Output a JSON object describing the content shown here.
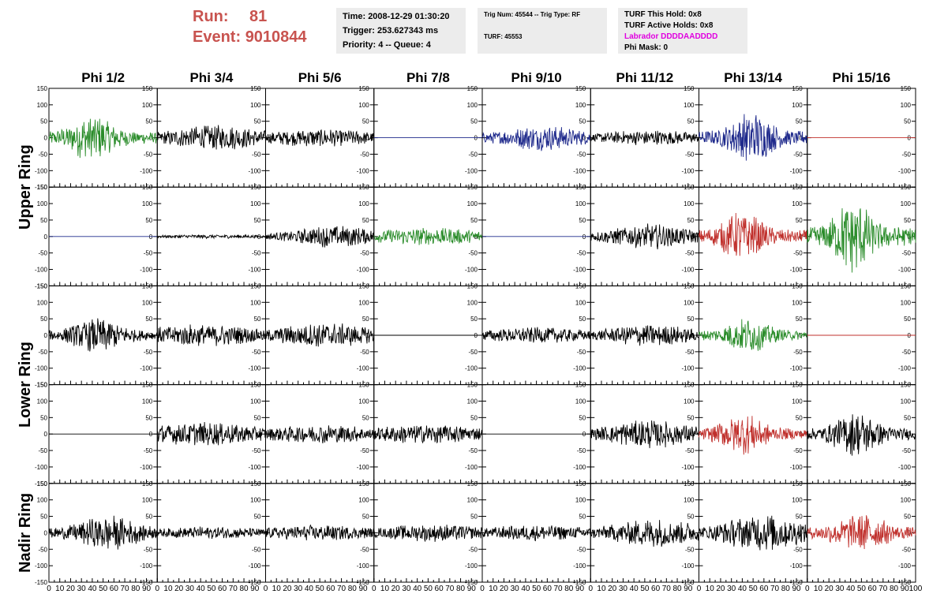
{
  "header": {
    "run_label": "Run:",
    "run_value": "81",
    "event_label": "Event:",
    "event_value": "9010844",
    "time": "Time: 2008-12-29 01:30:20",
    "trigger": "Trigger: 253.627343 ms",
    "priority": "Priority: 4 -- Queue: 4",
    "trig_num": "Trig Num: 45544 -- Trig Type: RF",
    "turf": "TURF: 45553",
    "turf_this_hold": "TURF This Hold: 0x8",
    "turf_active_holds": "TURF Active Holds: 0x8",
    "labrador": "Labrador DDDDAADDDD",
    "phi_mask": "Phi Mask: 0"
  },
  "colors": {
    "black": "#000000",
    "green": "#2a8c2a",
    "blue": "#1f2a8c",
    "red": "#c0302c",
    "header_red": "#c8534f",
    "labrador": "#e000e0"
  },
  "chart_data": {
    "type": "line",
    "columns": [
      "Phi 1/2",
      "Phi 3/4",
      "Phi 5/6",
      "Phi 7/8",
      "Phi 9/10",
      "Phi 11/12",
      "Phi 13/14",
      "Phi 15/16"
    ],
    "row_labels": [
      {
        "label": "Upper Ring",
        "rows": [
          0,
          1
        ]
      },
      {
        "label": "Lower Ring",
        "rows": [
          2,
          3
        ]
      },
      {
        "label": "Nadir Ring",
        "rows": [
          4
        ]
      }
    ],
    "ylim": [
      -150,
      150
    ],
    "xlim": [
      0,
      100
    ],
    "y_ticks_big": [
      -150,
      -100,
      -50,
      0,
      50,
      100,
      150
    ],
    "y_ticks_small": [
      -150,
      -100,
      -50,
      0,
      50,
      100,
      150
    ],
    "x_tick_labels": [
      "0",
      "10",
      "20",
      "30",
      "40",
      "50",
      "60",
      "70",
      "80",
      "90",
      "100"
    ],
    "panels": [
      [
        {
          "color": "green",
          "amp": 75,
          "center": 40,
          "width": 22,
          "flat": false
        },
        {
          "color": "black",
          "amp": 40,
          "center": 55,
          "width": 50,
          "flat": false
        },
        {
          "color": "black",
          "amp": 28,
          "center": 50,
          "width": 60,
          "flat": false
        },
        {
          "color": "blue",
          "amp": 0,
          "center": 50,
          "width": 50,
          "flat": true
        },
        {
          "color": "blue",
          "amp": 40,
          "center": 55,
          "width": 40,
          "flat": false
        },
        {
          "color": "black",
          "amp": 25,
          "center": 55,
          "width": 50,
          "flat": false
        },
        {
          "color": "blue",
          "amp": 85,
          "center": 48,
          "width": 20,
          "flat": false
        },
        {
          "color": "red",
          "amp": 0,
          "center": 50,
          "width": 50,
          "flat": true
        }
      ],
      [
        {
          "color": "blue",
          "amp": 0,
          "center": 50,
          "width": 50,
          "flat": true
        },
        {
          "color": "black",
          "amp": 6,
          "center": 50,
          "width": 70,
          "flat": false
        },
        {
          "color": "black",
          "amp": 35,
          "center": 65,
          "width": 40,
          "flat": false
        },
        {
          "color": "green",
          "amp": 28,
          "center": 50,
          "width": 60,
          "flat": false
        },
        {
          "color": "blue",
          "amp": 0,
          "center": 50,
          "width": 50,
          "flat": true
        },
        {
          "color": "black",
          "amp": 40,
          "center": 55,
          "width": 40,
          "flat": false
        },
        {
          "color": "red",
          "amp": 80,
          "center": 40,
          "width": 20,
          "flat": false
        },
        {
          "color": "green",
          "amp": 120,
          "center": 42,
          "width": 18,
          "flat": false
        }
      ],
      [
        {
          "color": "black",
          "amp": 55,
          "center": 45,
          "width": 25,
          "flat": false
        },
        {
          "color": "black",
          "amp": 35,
          "center": 40,
          "width": 60,
          "flat": false
        },
        {
          "color": "black",
          "amp": 40,
          "center": 55,
          "width": 50,
          "flat": false
        },
        {
          "color": "black",
          "amp": 0,
          "center": 50,
          "width": 50,
          "flat": true
        },
        {
          "color": "black",
          "amp": 25,
          "center": 50,
          "width": 60,
          "flat": false
        },
        {
          "color": "black",
          "amp": 35,
          "center": 55,
          "width": 45,
          "flat": false
        },
        {
          "color": "green",
          "amp": 55,
          "center": 45,
          "width": 22,
          "flat": false
        },
        {
          "color": "red",
          "amp": 0,
          "center": 50,
          "width": 50,
          "flat": true
        }
      ],
      [
        {
          "color": "black",
          "amp": 0,
          "center": 50,
          "width": 50,
          "flat": true
        },
        {
          "color": "black",
          "amp": 38,
          "center": 40,
          "width": 60,
          "flat": false
        },
        {
          "color": "black",
          "amp": 30,
          "center": 50,
          "width": 60,
          "flat": false
        },
        {
          "color": "black",
          "amp": 32,
          "center": 50,
          "width": 60,
          "flat": false
        },
        {
          "color": "black",
          "amp": 0,
          "center": 50,
          "width": 50,
          "flat": true
        },
        {
          "color": "black",
          "amp": 45,
          "center": 55,
          "width": 45,
          "flat": false
        },
        {
          "color": "red",
          "amp": 65,
          "center": 40,
          "width": 22,
          "flat": false
        },
        {
          "color": "black",
          "amp": 70,
          "center": 45,
          "width": 22,
          "flat": false
        }
      ],
      [
        {
          "color": "black",
          "amp": 55,
          "center": 55,
          "width": 30,
          "flat": false
        },
        {
          "color": "black",
          "amp": 20,
          "center": 50,
          "width": 60,
          "flat": false
        },
        {
          "color": "black",
          "amp": 25,
          "center": 50,
          "width": 60,
          "flat": false
        },
        {
          "color": "black",
          "amp": 28,
          "center": 55,
          "width": 55,
          "flat": false
        },
        {
          "color": "black",
          "amp": 25,
          "center": 50,
          "width": 60,
          "flat": false
        },
        {
          "color": "black",
          "amp": 45,
          "center": 60,
          "width": 45,
          "flat": false
        },
        {
          "color": "black",
          "amp": 60,
          "center": 60,
          "width": 40,
          "flat": false
        },
        {
          "color": "red",
          "amp": 60,
          "center": 50,
          "width": 28,
          "flat": false
        }
      ]
    ]
  }
}
